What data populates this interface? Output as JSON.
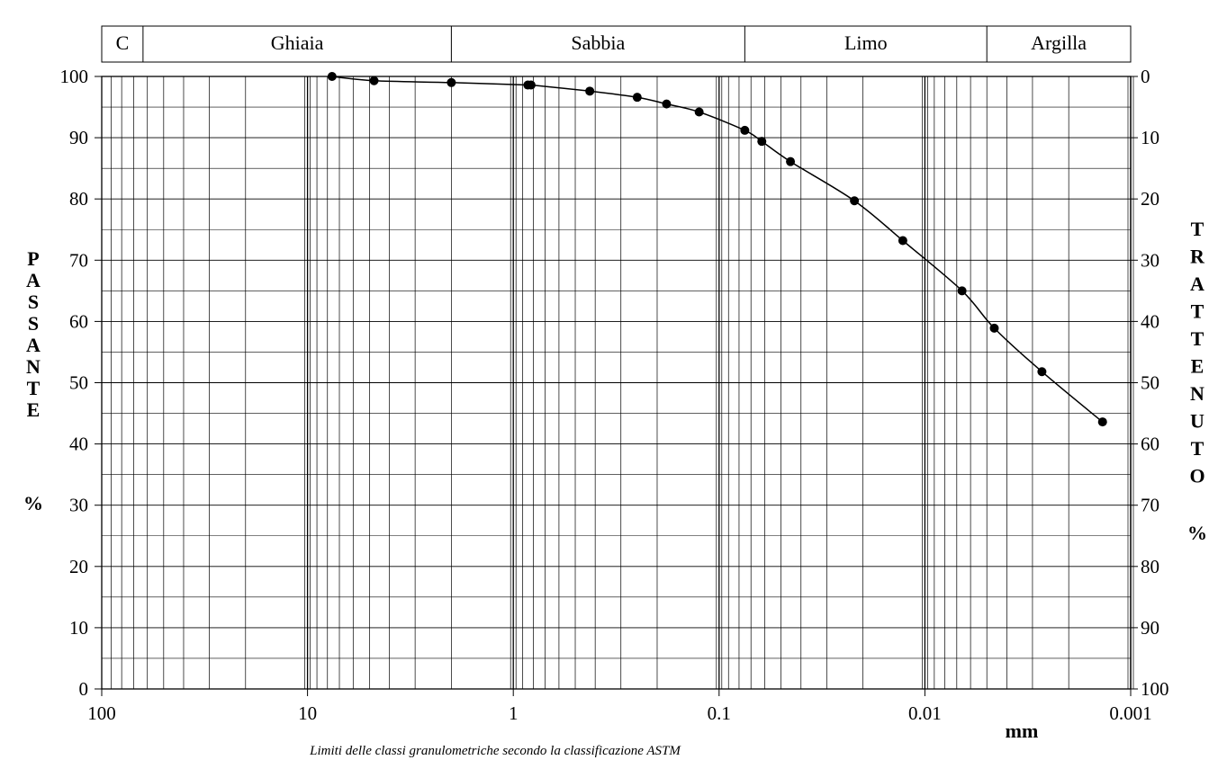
{
  "chart_data": {
    "type": "line",
    "x_scale": "log",
    "x_reversed": true,
    "xlim": [
      100,
      0.001
    ],
    "ylim": [
      0,
      100
    ],
    "x_tick_labels": [
      "100",
      "10",
      "1",
      "0.1",
      "0.01",
      "0.001"
    ],
    "x_unit": "mm",
    "y_left_label": "PASSANTE %",
    "y_left_letters": [
      "P",
      "A",
      "S",
      "S",
      "A",
      "N",
      "T",
      "E"
    ],
    "y_left_percent": "%",
    "y_left_ticks": [
      "0",
      "10",
      "20",
      "30",
      "40",
      "50",
      "60",
      "70",
      "80",
      "90",
      "100"
    ],
    "y_right_label": "TRATTENUTO %",
    "y_right_letters": [
      "T",
      "R",
      "A",
      "T",
      "T",
      "E",
      "N",
      "U",
      "T",
      "O"
    ],
    "y_right_percent": "%",
    "y_right_ticks": [
      "100",
      "90",
      "80",
      "70",
      "60",
      "50",
      "40",
      "30",
      "20",
      "10",
      "0"
    ],
    "grid": true,
    "bands": [
      {
        "label": "C",
        "from": 100,
        "to": 63
      },
      {
        "label": "Ghiaia",
        "from": 63,
        "to": 2
      },
      {
        "label": "Sabbia",
        "from": 2,
        "to": 0.075
      },
      {
        "label": "Limo",
        "from": 0.075,
        "to": 0.005
      },
      {
        "label": "Argilla",
        "from": 0.005,
        "to": 0.001
      }
    ],
    "note": "Limiti delle classi granulometriche secondo la classificazione ASTM",
    "series": [
      {
        "points": [
          [
            7.6,
            100
          ],
          [
            4.75,
            99.3
          ],
          [
            2.0,
            99.0
          ],
          [
            0.85,
            98.6
          ],
          [
            0.82,
            98.6
          ],
          [
            0.425,
            97.6
          ],
          [
            0.25,
            96.6
          ],
          [
            0.18,
            95.5
          ],
          [
            0.125,
            94.2
          ],
          [
            0.075,
            91.2
          ],
          [
            0.062,
            89.4
          ],
          [
            0.045,
            86.1
          ],
          [
            0.022,
            79.7
          ],
          [
            0.0128,
            73.2
          ],
          [
            0.0066,
            65.0
          ],
          [
            0.0046,
            58.9
          ],
          [
            0.0027,
            51.8
          ],
          [
            0.00137,
            43.6
          ]
        ]
      }
    ]
  }
}
